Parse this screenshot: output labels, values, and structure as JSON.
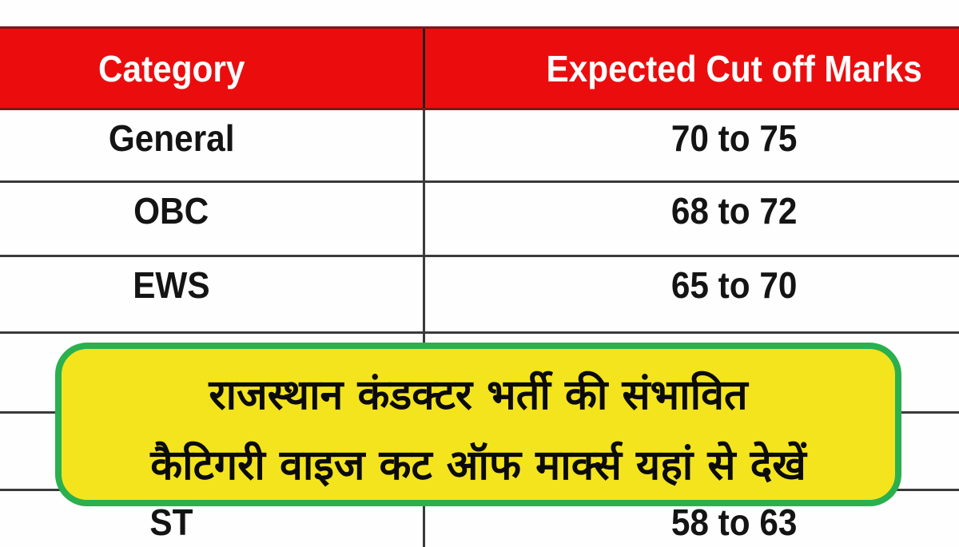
{
  "table": {
    "header": {
      "category": "Category",
      "marks": "Expected Cut off Marks"
    },
    "rows": [
      {
        "category": "General",
        "marks": "70 to 75"
      },
      {
        "category": "OBC",
        "marks": "68 to 72"
      },
      {
        "category": "EWS",
        "marks": "65 to 70"
      },
      {
        "category": "",
        "marks": ""
      },
      {
        "category": "",
        "marks": ""
      },
      {
        "category": "ST",
        "marks": "58 to 63"
      }
    ]
  },
  "banner": {
    "line1": "राजस्थान कंडक्टर भर्ती की संभावित",
    "line2": "कैटिगरी वाइज कट ऑफ मार्क्स यहां से देखें"
  },
  "colors": {
    "header_bg": "#eb0d0e",
    "header_border": "#7b181b",
    "header_text": "#ffffff",
    "grid_line": "#3a3a3a",
    "row_text": "#141414",
    "banner_bg": "#f3e41e",
    "banner_border": "#2ab04f",
    "banner_text": "#0b0b0b"
  },
  "chart_data": {
    "type": "table",
    "columns": [
      "Category",
      "Expected Cut off Marks"
    ],
    "rows": [
      [
        "General",
        "70 to 75"
      ],
      [
        "OBC",
        "68 to 72"
      ],
      [
        "EWS",
        "65 to 70"
      ],
      [
        "ST",
        "58 to 63"
      ]
    ],
    "annotations": [
      "राजस्थान कंडक्टर भर्ती की संभावित",
      "कैटिगरी वाइज कट ऑफ मार्क्स यहां से देखें"
    ],
    "notes": "two table rows are hidden behind the overlay banner"
  }
}
